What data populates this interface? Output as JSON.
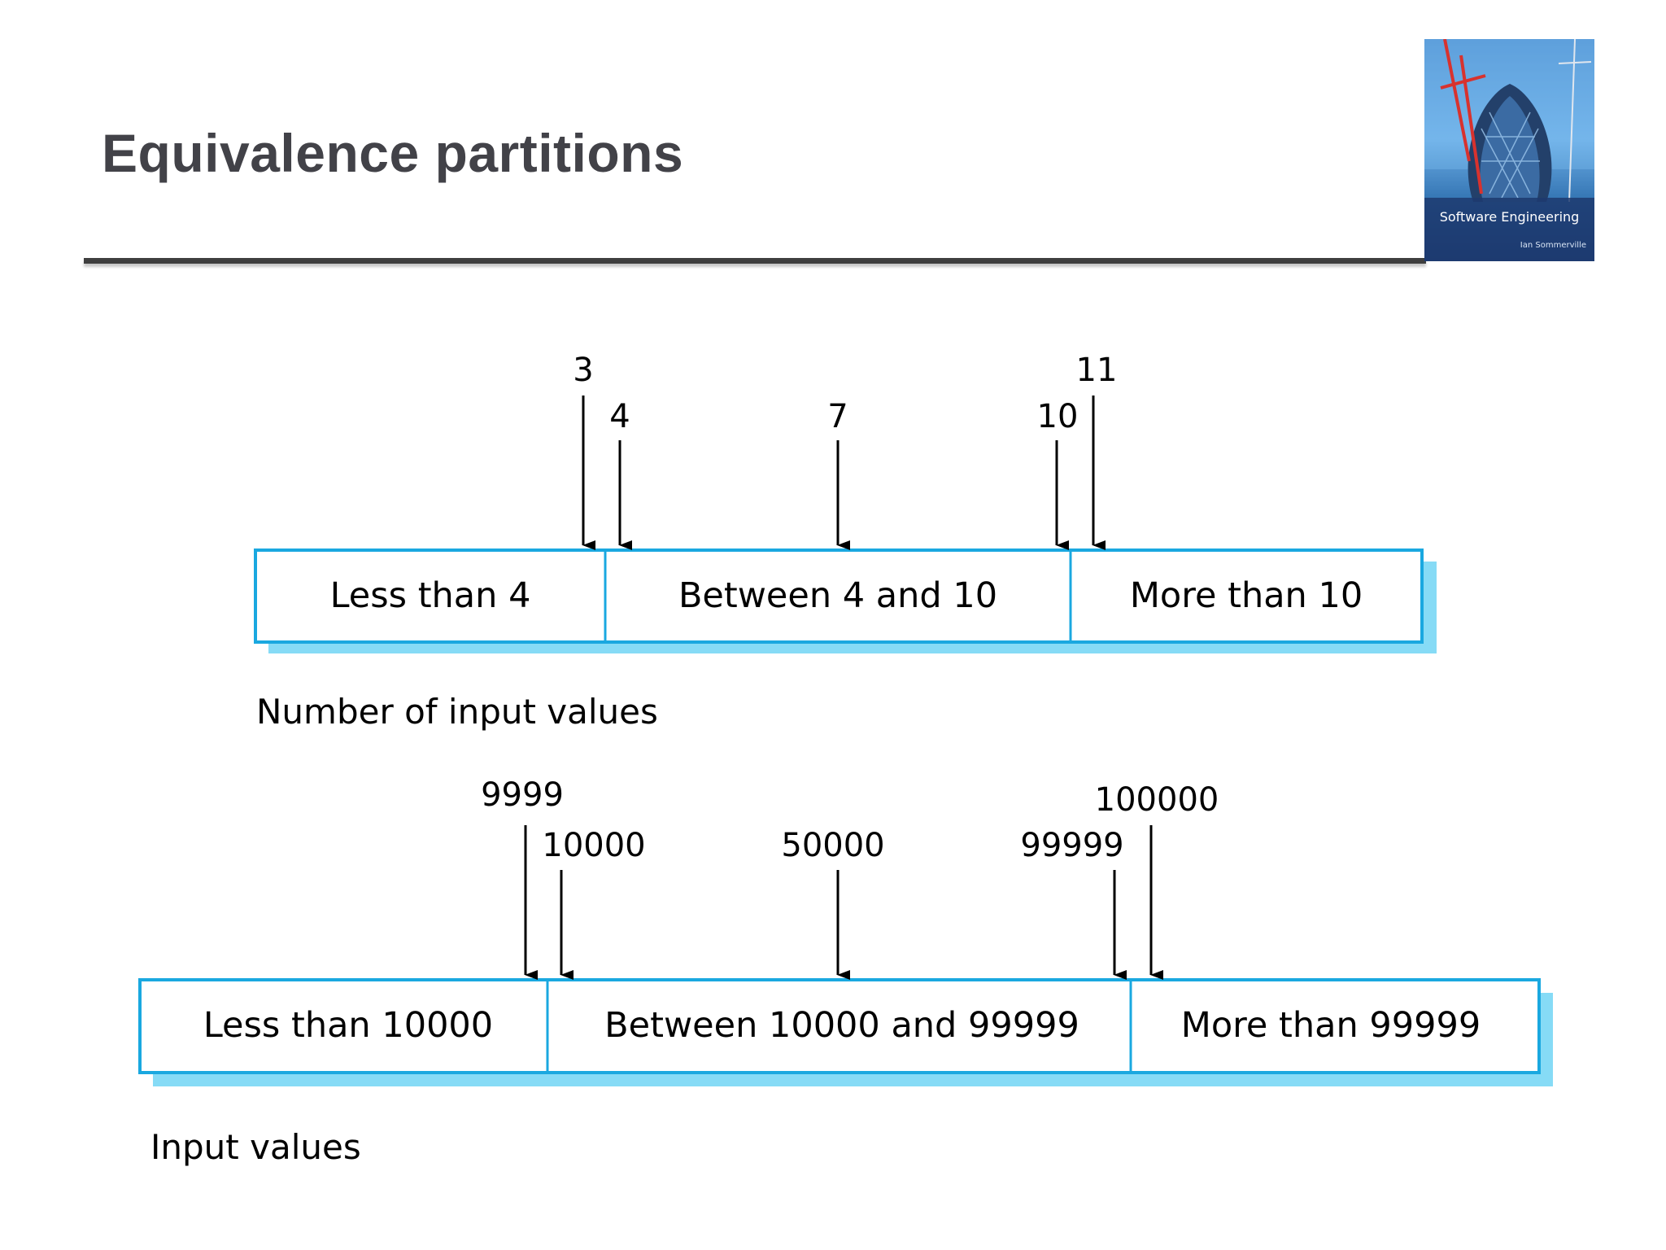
{
  "slide": {
    "title": "Equivalence partitions"
  },
  "book_cover": {
    "title": "Software Engineering",
    "author": "Ian Sommerville",
    "color_accent": "#4d8fd1"
  },
  "colors": {
    "partition_border": "#1aa8e0",
    "partition_shadow": "#86dbf6",
    "arrow": "#000000"
  },
  "diagrams": [
    {
      "caption": "Number of input values",
      "partitions": [
        "Less than 4",
        "Between 4 and 10",
        "More than 10"
      ],
      "test_values": [
        "3",
        "4",
        "7",
        "10",
        "11"
      ]
    },
    {
      "caption": "Input values",
      "partitions": [
        "Less than 10000",
        "Between 10000 and 99999",
        "More than 99999"
      ],
      "test_values": [
        "9999",
        "10000",
        "50000",
        "99999",
        "100000"
      ]
    }
  ]
}
